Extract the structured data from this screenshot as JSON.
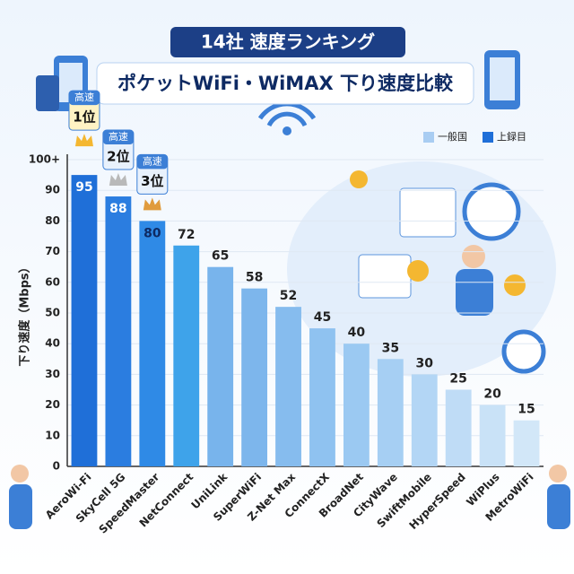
{
  "chart_data": {
    "type": "bar",
    "title": "14社 速度ランキング",
    "subtitle": "ポケットWiFi・WiMAX 下り速度比較",
    "y_label": "下り速度（Mbps）",
    "categories": [
      "AeroWi-Fi",
      "SkyCell 5G",
      "SpeedMaster",
      "NetConnect",
      "UniLink",
      "SuperWiFi",
      "Z-Net Max",
      "ConnectX",
      "BroadNet",
      "CityWave",
      "SwiftMobile",
      "HyperSpeed",
      "WiPlus",
      "MetroWiFi"
    ],
    "values": [
      95,
      88,
      80,
      72,
      65,
      58,
      52,
      45,
      40,
      35,
      30,
      25,
      20,
      15
    ],
    "colors": [
      "#1f6fd8",
      "#2b7de0",
      "#2f8ae6",
      "#3ea3ea",
      "#78b4ec",
      "#7db6ec",
      "#86bcee",
      "#8fc2f0",
      "#9bc9f2",
      "#a6cff3",
      "#b3d6f5",
      "#bfdcf6",
      "#c9e2f7",
      "#d2e7f8"
    ],
    "ylim": [
      0,
      100
    ],
    "yticks": [
      0,
      10,
      20,
      30,
      40,
      50,
      60,
      70,
      80,
      90,
      {
        "value": 100,
        "label": "100+"
      }
    ],
    "grid": true,
    "legend": [
      {
        "label": "一般国",
        "color": "#a9cdf2"
      },
      {
        "label": "上録目",
        "color": "#1f6fd8"
      }
    ],
    "rank_badges": [
      {
        "label": "高速",
        "rank": "1位"
      },
      {
        "label": "高速",
        "rank": "2位"
      },
      {
        "label": "高速",
        "rank": "3位"
      }
    ]
  }
}
